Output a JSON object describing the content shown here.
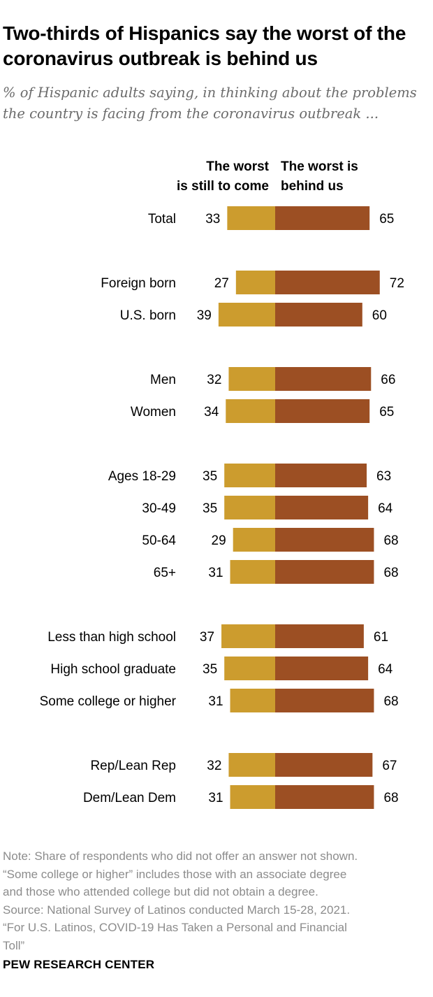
{
  "title": "Two-thirds of Hispanics say the worst of the coronavirus outbreak is behind us",
  "subtitle": "% of Hispanic adults saying, in thinking about the problems the country is facing from the coronavirus outbreak ...",
  "colors": {
    "worst_to_come": "#CC9C2E",
    "behind_us": "#9C4F23"
  },
  "chart_data": {
    "type": "bar",
    "orientation": "diverging-horizontal",
    "series": [
      {
        "name": "The worst is still to come",
        "header_lines": [
          "The worst",
          "is still to come"
        ],
        "values": [
          33,
          27,
          39,
          32,
          34,
          35,
          35,
          29,
          31,
          37,
          35,
          31,
          32,
          31
        ]
      },
      {
        "name": "The worst is behind us",
        "header_lines": [
          "The worst is",
          "behind us"
        ],
        "values": [
          65,
          72,
          60,
          66,
          65,
          63,
          64,
          68,
          68,
          61,
          64,
          68,
          67,
          68
        ]
      }
    ],
    "categories": [
      "Total",
      "Foreign born",
      "U.S. born",
      "Men",
      "Women",
      "Ages 18-29",
      "30-49",
      "50-64",
      "65+",
      "Less than high school",
      "High school graduate",
      "Some college or higher",
      "Rep/Lean Rep",
      "Dem/Lean Dem"
    ],
    "groups": [
      [
        0
      ],
      [
        1,
        2
      ],
      [
        3,
        4
      ],
      [
        5,
        6,
        7,
        8
      ],
      [
        9,
        10,
        11
      ],
      [
        12,
        13
      ]
    ],
    "xlim": [
      -40,
      75
    ],
    "unit": "%"
  },
  "notes": [
    "Note: Share of respondents who did not offer an answer not shown.",
    "“Some college or higher” includes those with an associate degree",
    "and those who attended college but did not obtain a degree.",
    "Source: National Survey of Latinos conducted March 15-28, 2021.",
    "“For U.S. Latinos, COVID-19 Has Taken a Personal and Financial",
    "Toll”"
  ],
  "brand": "PEW RESEARCH CENTER"
}
